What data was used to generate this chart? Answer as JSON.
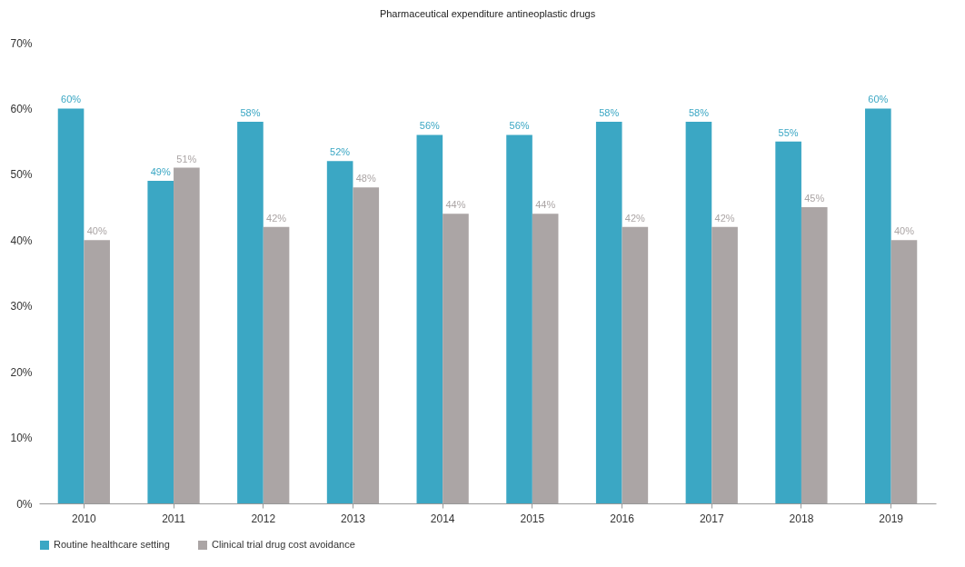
{
  "chart_data": {
    "type": "bar",
    "title": "Pharmaceutical expenditure antineoplastic drugs",
    "categories": [
      "2010",
      "2011",
      "2012",
      "2013",
      "2014",
      "2015",
      "2016",
      "2017",
      "2018",
      "2019"
    ],
    "series": [
      {
        "name": "Routine healthcare setting",
        "color": "#3ba7c4",
        "values": [
          60,
          49,
          58,
          52,
          56,
          56,
          58,
          58,
          55,
          60
        ],
        "value_labels": [
          "60%",
          "49%",
          "58%",
          "52%",
          "56%",
          "56%",
          "58%",
          "58%",
          "55%",
          "60%"
        ]
      },
      {
        "name": "Clinical trial drug cost avoidance",
        "color": "#aba5a5",
        "values": [
          40,
          51,
          42,
          48,
          44,
          44,
          42,
          42,
          45,
          40
        ],
        "value_labels": [
          "40%",
          "51%",
          "42%",
          "48%",
          "44%",
          "44%",
          "42%",
          "42%",
          "45%",
          "40%"
        ]
      }
    ],
    "ylim": [
      0,
      70
    ],
    "yticks": [
      {
        "value": 0,
        "label": "0%"
      },
      {
        "value": 10,
        "label": "10%"
      },
      {
        "value": 20,
        "label": "20%"
      },
      {
        "value": 30,
        "label": "30%"
      },
      {
        "value": 40,
        "label": "40%"
      },
      {
        "value": 50,
        "label": "50%"
      },
      {
        "value": 60,
        "label": "60%"
      },
      {
        "value": 70,
        "label": "70%"
      }
    ],
    "grid": false,
    "legend": "bottom"
  }
}
